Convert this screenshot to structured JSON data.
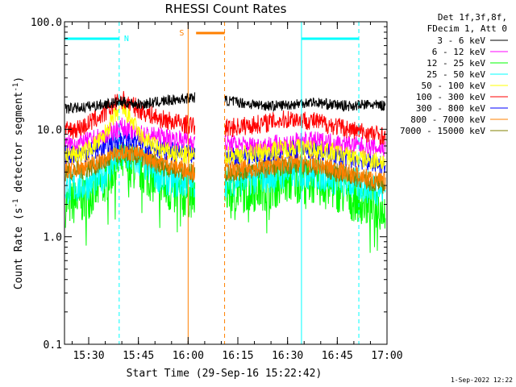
{
  "chart_data": {
    "type": "line",
    "title": "RHESSI Count Rates",
    "xlabel": "Start Time (29-Sep-16 15:22:42)",
    "ylabel": "Count Rate (s⁻¹ detector segment⁻¹)",
    "yscale": "log",
    "ylim": [
      0.1,
      100
    ],
    "xlim_minutes_since_start": [
      0,
      97.3
    ],
    "x_tick_labels": [
      "15:30",
      "15:45",
      "16:00",
      "16:15",
      "16:30",
      "16:45",
      "17:00"
    ],
    "y_tick_labels": [
      "100.0",
      "10.0",
      "1.0",
      "0.1"
    ],
    "y_ticks": [
      100,
      10,
      1,
      0.1
    ],
    "legend_header": [
      "Det 1f,3f,8f,",
      "FDecim 1, Att 0"
    ],
    "legend_position": "top-right outside",
    "data_gap": [
      "16:02",
      "16:11"
    ],
    "series": [
      {
        "name": "3 - 6 keV",
        "color": "#000000",
        "profile": [
          15.5,
          16,
          17,
          18,
          17,
          18,
          19,
          20,
          19,
          18,
          17,
          16.5,
          17,
          18,
          17,
          16.5,
          17,
          16.5
        ]
      },
      {
        "name": "6 - 12 keV",
        "color": "#ff00ff",
        "profile": [
          7.2,
          7.5,
          8.5,
          10.5,
          9,
          8.5,
          8,
          7.8,
          7.5,
          7.2,
          7.0,
          7.2,
          7.6,
          7.8,
          7.6,
          7.2,
          6.8,
          6.6
        ]
      },
      {
        "name": "12 - 25 keV",
        "color": "#00ff00",
        "profile": [
          2.0,
          2.2,
          3.0,
          5.0,
          4.2,
          3.0,
          2.4,
          2.5,
          2.6,
          2.7,
          2.8,
          3.0,
          3.4,
          3.3,
          3.0,
          2.4,
          2.0,
          1.8
        ]
      },
      {
        "name": "25 - 50 keV",
        "color": "#00ffff",
        "profile": [
          2.8,
          3.0,
          3.6,
          5.8,
          5.0,
          3.6,
          3.2,
          3.2,
          3.3,
          3.4,
          3.5,
          3.7,
          4.0,
          3.9,
          3.6,
          3.2,
          2.9,
          2.7
        ]
      },
      {
        "name": "50 - 100 keV",
        "color": "#ffff00",
        "profile": [
          5.6,
          6.0,
          8.0,
          16.0,
          8.5,
          6.5,
          5.8,
          5.6,
          5.6,
          5.8,
          6.0,
          6.4,
          6.8,
          6.6,
          6.2,
          5.6,
          5.2,
          5.0
        ]
      },
      {
        "name": "100 - 300 keV",
        "color": "#ff0000",
        "profile": [
          9.5,
          10.5,
          13.5,
          19.0,
          15.0,
          12.5,
          11.5,
          10.5,
          10.0,
          10.5,
          11.0,
          11.8,
          12.6,
          12.0,
          11.0,
          10.0,
          9.2,
          8.6
        ]
      },
      {
        "name": "300 - 800 keV",
        "color": "#0000ff",
        "profile": [
          5.8,
          6.0,
          6.8,
          8.2,
          7.5,
          6.6,
          6.0,
          5.6,
          5.5,
          5.7,
          5.9,
          6.2,
          6.6,
          6.4,
          6.0,
          5.4,
          5.0,
          4.6
        ]
      },
      {
        "name": "800 - 7000 keV",
        "color": "#ff8000",
        "profile": [
          4.2,
          4.5,
          5.2,
          6.5,
          5.8,
          5.0,
          4.5,
          4.0,
          4.0,
          4.2,
          4.4,
          4.7,
          5.0,
          4.8,
          4.4,
          3.9,
          3.5,
          3.2
        ]
      },
      {
        "name": "7000 - 15000 keV",
        "color": "#808000",
        "profile": [
          4.0,
          4.2,
          4.8,
          6.0,
          5.4,
          4.6,
          4.2,
          3.8,
          3.8,
          4.0,
          4.2,
          4.4,
          4.7,
          4.5,
          4.1,
          3.7,
          3.3,
          3.0
        ]
      }
    ],
    "markers": [
      {
        "label": "N",
        "color": "#00ffff",
        "bar_from": 0.0,
        "bar_to": 16.5,
        "solid_at": 0.0,
        "dashed_at": 16.5
      },
      {
        "label": "S",
        "color": "#ff8000",
        "bar_from": 39.7,
        "bar_to": 48.3,
        "solid_at": 37.3,
        "dashed_at": 48.3
      },
      {
        "label": "",
        "color": "#00ffff",
        "bar_from": 71.5,
        "bar_to": 88.8,
        "solid_at": 71.5,
        "dashed_at": 88.8
      }
    ]
  },
  "footer_date": "1-Sep-2022 12:22"
}
